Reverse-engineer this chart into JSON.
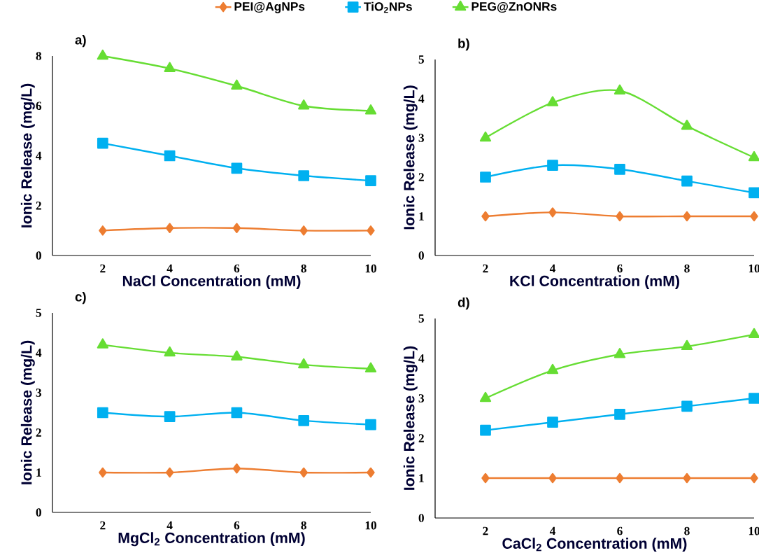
{
  "chart_data": [
    {
      "type": "line",
      "title": "a)",
      "xlabel": "NaCl Concentration (mM)",
      "ylabel": "Ionic Release (mg/L)",
      "x": [
        2,
        4,
        6,
        8,
        10
      ],
      "xlim": [
        0.5,
        10
      ],
      "xticks": [
        2,
        4,
        6,
        8,
        10
      ],
      "ylim": [
        0,
        8
      ],
      "yticks": [
        0,
        2,
        4,
        6,
        8
      ],
      "legend": "top",
      "grid": false,
      "series": [
        {
          "name": "PEI@AgNPs",
          "color": "#ed7d31",
          "marker": "diamond",
          "values": [
            1,
            1.1,
            1.1,
            1,
            1
          ]
        },
        {
          "name": "TiO$_{2}$NPs",
          "color": "#00b0f0",
          "marker": "square",
          "values": [
            4.5,
            4,
            3.5,
            3.2,
            3
          ]
        },
        {
          "name": "PEG@ZnONRs",
          "color": "#66dd33",
          "marker": "triangle",
          "values": [
            8,
            7.5,
            6.8,
            6,
            5.8
          ]
        }
      ]
    },
    {
      "type": "line",
      "title": "b)",
      "xlabel": "KCl Concentration (mM)",
      "ylabel": "Ionic Release (mg/L)",
      "x": [
        2,
        4,
        6,
        8,
        10
      ],
      "xlim": [
        0.5,
        10
      ],
      "xticks": [
        2,
        4,
        6,
        8,
        10
      ],
      "ylim": [
        0,
        5
      ],
      "yticks": [
        0,
        1,
        2,
        3,
        4,
        5
      ],
      "grid": false,
      "series": [
        {
          "color": "#ed7d31",
          "marker": "diamond",
          "values": [
            1,
            1.1,
            1,
            1,
            1
          ]
        },
        {
          "color": "#00b0f0",
          "marker": "square",
          "values": [
            2,
            2.3,
            2.2,
            1.9,
            1.6
          ]
        },
        {
          "color": "#66dd33",
          "marker": "triangle",
          "values": [
            3,
            3.9,
            4.2,
            3.3,
            2.5
          ]
        }
      ]
    },
    {
      "type": "line",
      "title": "c)",
      "xlabel": "MgCl$_{2}$ Concentration (mM)",
      "ylabel": "Ionic Release (mg/L)",
      "x": [
        2,
        4,
        6,
        8,
        10
      ],
      "xlim": [
        0.5,
        10
      ],
      "xticks": [
        2,
        4,
        6,
        8,
        10
      ],
      "ylim": [
        0,
        5
      ],
      "yticks": [
        0,
        1,
        2,
        3,
        4,
        5
      ],
      "grid": false,
      "series": [
        {
          "color": "#ed7d31",
          "marker": "diamond",
          "values": [
            1,
            1,
            1.1,
            1,
            1
          ]
        },
        {
          "color": "#00b0f0",
          "marker": "square",
          "values": [
            2.5,
            2.4,
            2.5,
            2.3,
            2.2
          ]
        },
        {
          "color": "#66dd33",
          "marker": "triangle",
          "values": [
            4.2,
            4,
            3.9,
            3.7,
            3.6
          ]
        }
      ]
    },
    {
      "type": "line",
      "title": "d)",
      "xlabel": "CaCl$_{2}$ Concentration (mM)",
      "ylabel": "Ionic Release (mg/L)",
      "x": [
        2,
        4,
        6,
        8,
        10
      ],
      "xlim": [
        0.5,
        10
      ],
      "xticks": [
        2,
        4,
        6,
        8,
        10
      ],
      "ylim": [
        0,
        5
      ],
      "yticks": [
        0,
        1,
        2,
        3,
        4,
        5
      ],
      "grid": false,
      "series": [
        {
          "color": "#ed7d31",
          "marker": "diamond",
          "values": [
            1,
            1,
            1,
            1,
            1
          ]
        },
        {
          "color": "#00b0f0",
          "marker": "square",
          "values": [
            2.2,
            2.4,
            2.6,
            2.8,
            3
          ]
        },
        {
          "color": "#66dd33",
          "marker": "triangle",
          "values": [
            3,
            3.7,
            4.1,
            4.3,
            4.6
          ]
        }
      ]
    }
  ]
}
